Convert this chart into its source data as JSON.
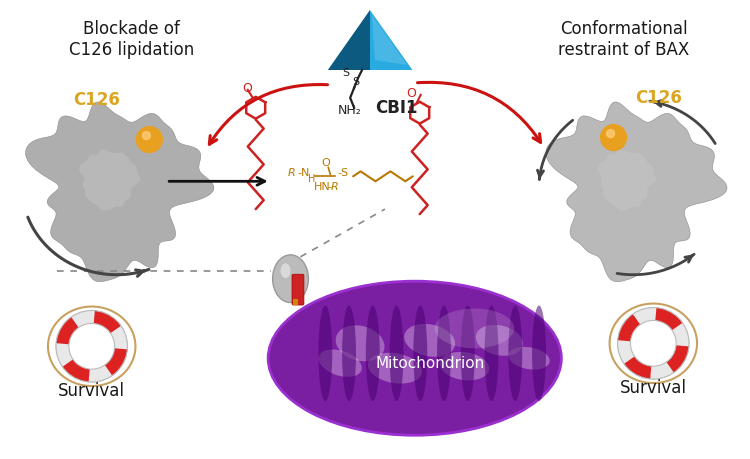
{
  "background_color": "#ffffff",
  "left_title": "Blockade of\nC126 lipidation",
  "right_title": "Conformational\nrestraint of BAX",
  "c126_color": "#DAA520",
  "c126_label": "C126",
  "cbi1_label": "CBI1",
  "mitochondrion_label": "Mitochondrion",
  "survival_label": "Survival",
  "pyramid_blue_light": "#29ABE2",
  "pyramid_blue_mid": "#1a8fc0",
  "pyramid_blue_dark": "#0d5a80",
  "red_color": "#CC1111",
  "dark_color": "#333333",
  "lipid_color": "#CC2222",
  "mol_color": "#B87800",
  "mito_purple": "#7B1FA2",
  "mito_dark": "#4A0072",
  "protein_gray": "#AAAAAA",
  "protein_edge": "#888888",
  "gold_color": "#E8A020",
  "lp_red": "#DD2222",
  "lp_rope": "#C8A060"
}
